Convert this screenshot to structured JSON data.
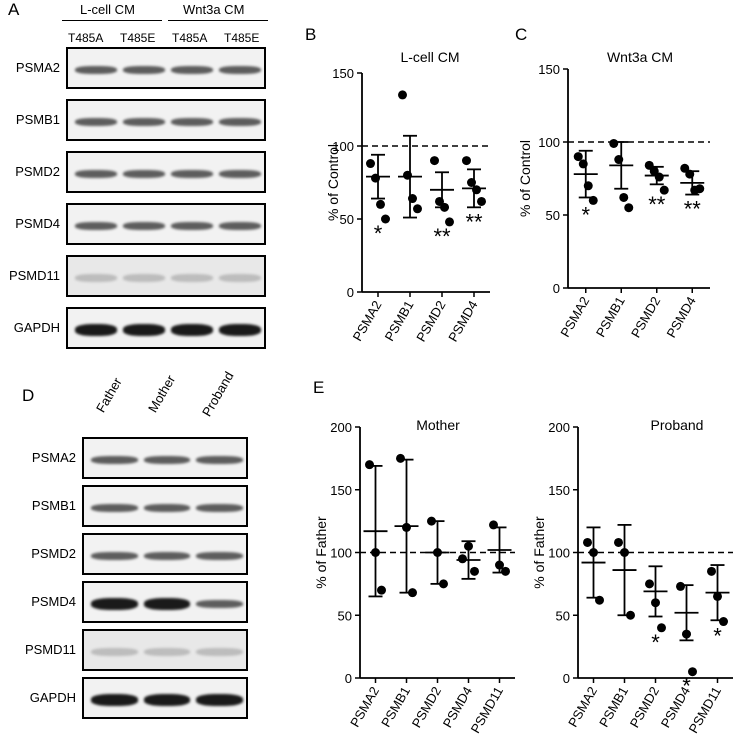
{
  "panels": {
    "A": {
      "letter": "A",
      "groups": [
        "L-cell CM",
        "Wnt3a CM"
      ],
      "columns": [
        "T485A",
        "T485E",
        "T485A",
        "T485E"
      ],
      "rows": [
        "PSMA2",
        "PSMB1",
        "PSMD2",
        "PSMD4",
        "PSMD11",
        "GAPDH"
      ]
    },
    "D": {
      "letter": "D",
      "columns": [
        "Father",
        "Mother",
        "Proband"
      ],
      "rows": [
        "PSMA2",
        "PSMB1",
        "PSMD2",
        "PSMD4",
        "PSMD11",
        "GAPDH"
      ]
    },
    "B": {
      "letter": "B"
    },
    "C": {
      "letter": "C"
    },
    "E": {
      "letter": "E"
    }
  },
  "chart_data": [
    {
      "type": "scatter",
      "panel": "B",
      "title": "L-cell CM",
      "ylabel": "% of Control",
      "ylim": [
        0,
        150
      ],
      "yticks": [
        0,
        50,
        100,
        150
      ],
      "reference_line": 100,
      "categories": [
        "PSMA2",
        "PSMB1",
        "PSMD2",
        "PSMD4"
      ],
      "points": [
        [
          88,
          78,
          60,
          50
        ],
        [
          135,
          80,
          64,
          57
        ],
        [
          90,
          62,
          58,
          48
        ],
        [
          90,
          75,
          70,
          62
        ]
      ],
      "mean": [
        79,
        79,
        70,
        71
      ],
      "error": [
        15,
        28,
        12,
        13
      ],
      "significance": [
        "*",
        "",
        "**",
        "**"
      ]
    },
    {
      "type": "scatter",
      "panel": "C",
      "title": "Wnt3a CM",
      "ylabel": "% of Control",
      "ylim": [
        0,
        150
      ],
      "yticks": [
        0,
        50,
        100,
        150
      ],
      "reference_line": 100,
      "categories": [
        "PSMA2",
        "PSMB1",
        "PSMD2",
        "PSMD4"
      ],
      "points": [
        [
          90,
          85,
          70,
          60
        ],
        [
          99,
          88,
          62,
          55
        ],
        [
          84,
          80,
          76,
          67
        ],
        [
          82,
          78,
          67,
          68
        ]
      ],
      "mean": [
        78,
        84,
        77,
        72
      ],
      "error": [
        16,
        16,
        6,
        8
      ],
      "significance": [
        "*",
        "",
        "**",
        "**"
      ]
    },
    {
      "type": "scatter",
      "panel": "E",
      "title": "Mother",
      "ylabel": "% of Father",
      "ylim": [
        0,
        200
      ],
      "yticks": [
        0,
        50,
        100,
        150,
        200
      ],
      "reference_line": 100,
      "categories": [
        "PSMA2",
        "PSMB1",
        "PSMD2",
        "PSMD4",
        "PSMD11"
      ],
      "points": [
        [
          170,
          100,
          70
        ],
        [
          175,
          120,
          68
        ],
        [
          125,
          100,
          75
        ],
        [
          95,
          105,
          85
        ],
        [
          122,
          90,
          85
        ]
      ],
      "mean": [
        117,
        121,
        100,
        94,
        102
      ],
      "error": [
        52,
        53,
        25,
        15,
        18
      ],
      "significance": [
        "",
        "",
        "",
        "",
        ""
      ]
    },
    {
      "type": "scatter",
      "panel": "E",
      "title": "Proband",
      "ylabel": "% of Father",
      "ylim": [
        0,
        200
      ],
      "yticks": [
        0,
        50,
        100,
        150,
        200
      ],
      "reference_line": 100,
      "categories": [
        "PSMA2",
        "PSMB1",
        "PSMD2",
        "PSMD4",
        "PSMD11"
      ],
      "points": [
        [
          108,
          100,
          62
        ],
        [
          108,
          100,
          50
        ],
        [
          75,
          60,
          40
        ],
        [
          73,
          35,
          5
        ],
        [
          85,
          65,
          45
        ]
      ],
      "mean": [
        92,
        86,
        69,
        52,
        68
      ],
      "error": [
        28,
        36,
        20,
        22,
        22
      ],
      "significance": [
        "",
        "",
        "*",
        "*",
        "*"
      ]
    }
  ]
}
